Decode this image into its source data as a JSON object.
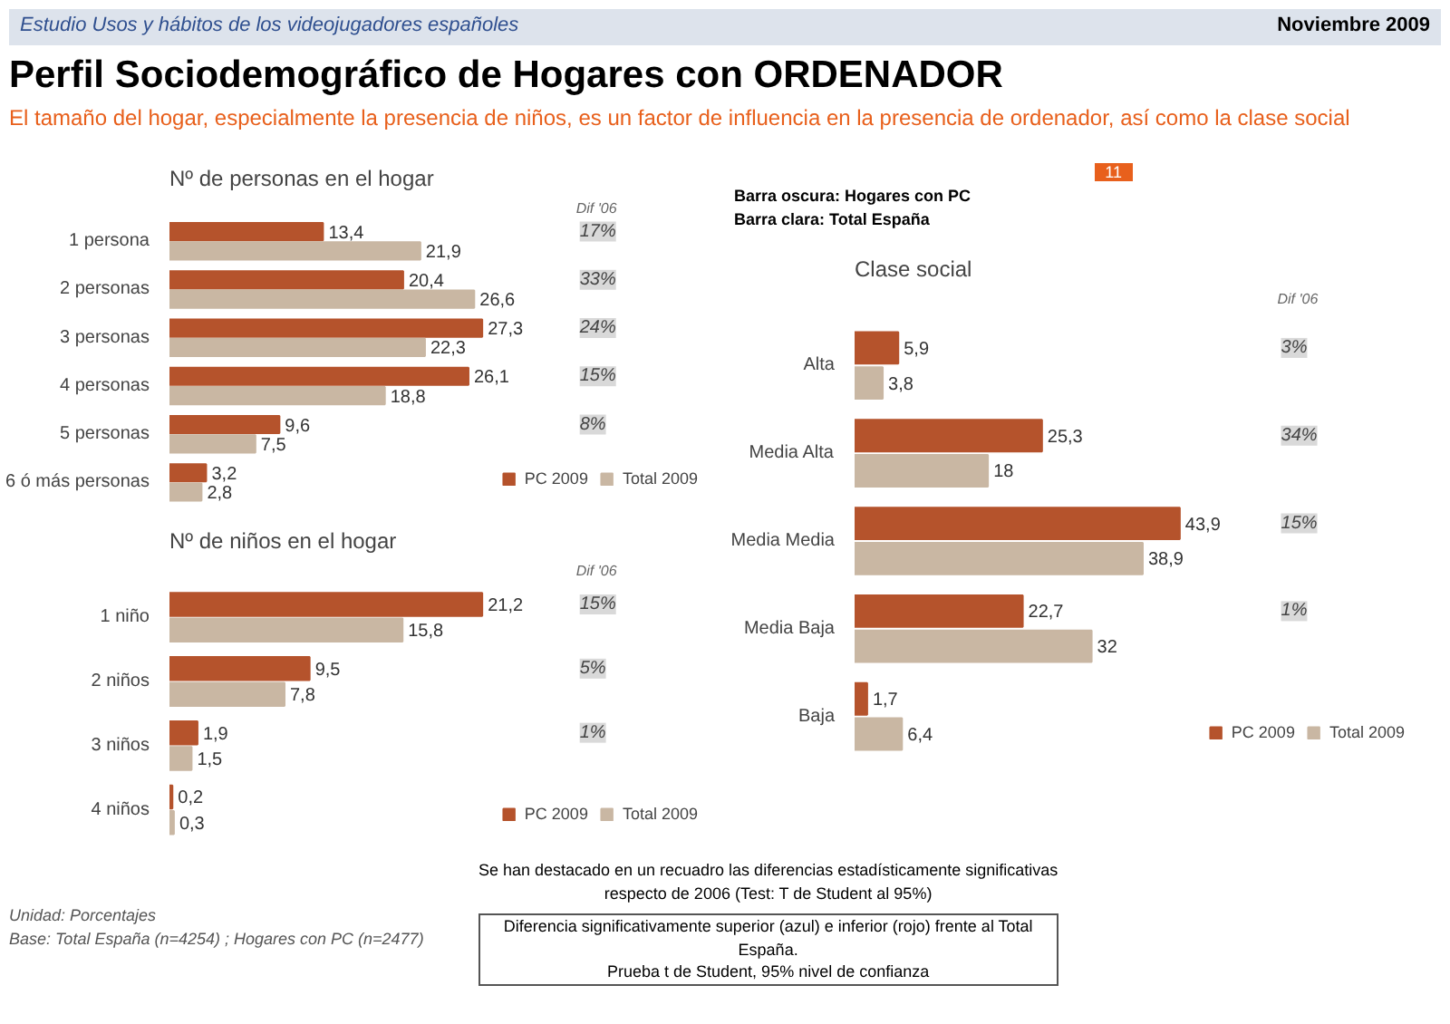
{
  "chart_data": [
    {
      "type": "other",
      "title": "Perfil Sociodemográfico de Hogares con ORDENADOR",
      "subtitle": "El tamaño del hogar, especialmente la presencia de niños, es un factor de influencia en la presencia de ordenador, así como la clase social",
      "annotations": [
        "Estudio Usos y hábitos de los videojugadores españoles",
        "Noviembre 2009",
        "11",
        "Barra oscura: Hogares con PC",
        "Barra clara: Total España",
        "Se han destacado en un recuadro las diferencias estadísticamente significativas respecto de 2006 (Test: T de Student al 95%)",
        "Diferencia significativamente superior (azul) e inferior (rojo) frente al Total España.",
        "Prueba t de Student, 95% nivel de confianza",
        "Unidad: Porcentajes",
        "Base: Total España (n=4254) ; Hogares con PC (n=2477)"
      ]
    },
    {
      "type": "bar",
      "orientation": "horizontal",
      "title": "Nº de personas en el hogar",
      "categories": [
        "1 persona",
        "2 personas",
        "3 personas",
        "4 personas",
        "5 personas",
        "6 ó más personas"
      ],
      "series": [
        {
          "name": "PC 2009",
          "color": "#b5532c",
          "values": [
            13.4,
            20.4,
            27.3,
            26.1,
            9.6,
            3.2
          ],
          "value_labels": [
            "13,4",
            "20,4",
            "27,3",
            "26,1",
            "9,6",
            "3,2"
          ]
        },
        {
          "name": "Total 2009",
          "color": "#c9b7a3",
          "values": [
            21.9,
            26.6,
            22.3,
            18.8,
            7.5,
            2.8
          ],
          "value_labels": [
            "21,9",
            "26,6",
            "22,3",
            "18,8",
            "7,5",
            "2,8"
          ]
        }
      ],
      "annotations": [
        "Dif '06",
        "17%",
        "33%",
        "24%",
        "15%",
        "8%"
      ],
      "legend": "bottom right",
      "tick_labels": "y",
      "grid": false
    },
    {
      "type": "bar",
      "orientation": "horizontal",
      "title": "Nº de niños en el hogar",
      "categories": [
        "1 niño",
        "2 niños",
        "3 niños",
        "4 niños"
      ],
      "series": [
        {
          "name": "PC 2009",
          "color": "#b5532c",
          "values": [
            21.2,
            9.5,
            1.9,
            0.2
          ],
          "value_labels": [
            "21,2",
            "9,5",
            "1,9",
            "0,2"
          ]
        },
        {
          "name": "Total 2009",
          "color": "#c9b7a3",
          "values": [
            15.8,
            7.8,
            1.5,
            0.3
          ],
          "value_labels": [
            "15,8",
            "7,8",
            "1,5",
            "0,3"
          ]
        }
      ],
      "annotations": [
        "Dif '06",
        "15%",
        "5%",
        "1%"
      ],
      "legend": "bottom right",
      "tick_labels": "y",
      "grid": false
    },
    {
      "type": "bar",
      "orientation": "horizontal",
      "title": "Clase social",
      "categories": [
        "Alta",
        "Media Alta",
        "Media Media",
        "Media Baja",
        "Baja"
      ],
      "series": [
        {
          "name": "PC 2009",
          "color": "#b5532c",
          "values": [
            5.9,
            25.3,
            43.9,
            22.7,
            1.7
          ],
          "value_labels": [
            "5,9",
            "25,3",
            "43,9",
            "22,7",
            "1,7"
          ]
        },
        {
          "name": "Total 2009",
          "color": "#c9b7a3",
          "values": [
            3.8,
            18,
            38.9,
            32,
            6.4
          ],
          "value_labels": [
            "3,8",
            "18",
            "38,9",
            "32",
            "6,4"
          ]
        }
      ],
      "annotations": [
        "Dif '06",
        "3%",
        "34%",
        "15%",
        "1%"
      ],
      "legend": "bottom right",
      "tick_labels": "y",
      "grid": false
    }
  ]
}
